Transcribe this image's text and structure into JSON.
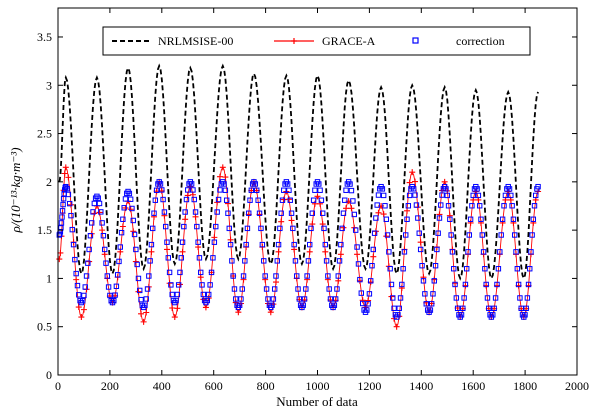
{
  "chart_data": {
    "type": "line",
    "xlabel": "Number of data",
    "ylabel": "ρ/(10⁻¹³·kg·m⁻³)",
    "xlim": [
      0,
      2000
    ],
    "ylim": [
      0,
      3.8
    ],
    "x_ticks": [
      0,
      200,
      400,
      600,
      800,
      1000,
      1200,
      1400,
      1600,
      1800,
      2000
    ],
    "x_tick_labels": [
      "0",
      "200",
      "400",
      "600",
      "800",
      "1000",
      "1200",
      "1400",
      "1600",
      "1800",
      "2000"
    ],
    "y_ticks": [
      0,
      0.5,
      1,
      1.5,
      2,
      2.5,
      3,
      3.5
    ],
    "y_tick_labels": [
      "0",
      "0.5",
      "1",
      "1.5",
      "2",
      "2.5",
      "3",
      "3.5"
    ],
    "grid": false,
    "legend_position": "top-center",
    "series": [
      {
        "name": "NRLMSISE-00",
        "style": "dashed",
        "color": "#000000",
        "peaks": [
          {
            "x": 30,
            "y": 3.08
          },
          {
            "x": 150,
            "y": 3.08
          },
          {
            "x": 270,
            "y": 3.18
          },
          {
            "x": 390,
            "y": 3.2
          },
          {
            "x": 510,
            "y": 3.18
          },
          {
            "x": 635,
            "y": 3.2
          },
          {
            "x": 755,
            "y": 3.12
          },
          {
            "x": 880,
            "y": 3.1
          },
          {
            "x": 1000,
            "y": 3.1
          },
          {
            "x": 1120,
            "y": 3.05
          },
          {
            "x": 1245,
            "y": 2.98
          },
          {
            "x": 1365,
            "y": 3.0
          },
          {
            "x": 1490,
            "y": 2.98
          },
          {
            "x": 1610,
            "y": 2.95
          },
          {
            "x": 1735,
            "y": 2.93
          },
          {
            "x": 1850,
            "y": 2.93
          }
        ],
        "troughs": [
          {
            "x": 5,
            "y": 2.0
          },
          {
            "x": 90,
            "y": 1.05
          },
          {
            "x": 210,
            "y": 1.05
          },
          {
            "x": 330,
            "y": 1.1
          },
          {
            "x": 450,
            "y": 1.15
          },
          {
            "x": 570,
            "y": 1.2
          },
          {
            "x": 695,
            "y": 1.2
          },
          {
            "x": 820,
            "y": 1.15
          },
          {
            "x": 940,
            "y": 1.15
          },
          {
            "x": 1060,
            "y": 1.1
          },
          {
            "x": 1185,
            "y": 1.1
          },
          {
            "x": 1305,
            "y": 1.05
          },
          {
            "x": 1430,
            "y": 1.05
          },
          {
            "x": 1550,
            "y": 1.0
          },
          {
            "x": 1670,
            "y": 1.0
          },
          {
            "x": 1795,
            "y": 1.0
          }
        ]
      },
      {
        "name": "GRACE-A",
        "style": "line-plus",
        "color": "#ff0000",
        "peaks": [
          {
            "x": 30,
            "y": 2.15
          },
          {
            "x": 150,
            "y": 1.75
          },
          {
            "x": 270,
            "y": 1.8
          },
          {
            "x": 390,
            "y": 2.0
          },
          {
            "x": 510,
            "y": 1.95
          },
          {
            "x": 635,
            "y": 2.15
          },
          {
            "x": 755,
            "y": 2.0
          },
          {
            "x": 880,
            "y": 1.9
          },
          {
            "x": 1000,
            "y": 1.85
          },
          {
            "x": 1120,
            "y": 1.8
          },
          {
            "x": 1245,
            "y": 1.75
          },
          {
            "x": 1365,
            "y": 2.1
          },
          {
            "x": 1490,
            "y": 2.0
          },
          {
            "x": 1610,
            "y": 1.9
          },
          {
            "x": 1735,
            "y": 1.9
          },
          {
            "x": 1850,
            "y": 1.9
          }
        ],
        "troughs": [
          {
            "x": 5,
            "y": 1.2
          },
          {
            "x": 90,
            "y": 0.6
          },
          {
            "x": 210,
            "y": 0.75
          },
          {
            "x": 330,
            "y": 0.55
          },
          {
            "x": 450,
            "y": 0.6
          },
          {
            "x": 570,
            "y": 0.7
          },
          {
            "x": 695,
            "y": 0.65
          },
          {
            "x": 820,
            "y": 0.65
          },
          {
            "x": 940,
            "y": 0.7
          },
          {
            "x": 1060,
            "y": 0.7
          },
          {
            "x": 1185,
            "y": 0.7
          },
          {
            "x": 1305,
            "y": 0.5
          },
          {
            "x": 1430,
            "y": 0.65
          },
          {
            "x": 1550,
            "y": 0.6
          },
          {
            "x": 1670,
            "y": 0.6
          },
          {
            "x": 1795,
            "y": 0.6
          }
        ]
      },
      {
        "name": "correction",
        "style": "square-markers",
        "color": "#0000ff",
        "peaks": [
          {
            "x": 30,
            "y": 1.95
          },
          {
            "x": 150,
            "y": 1.85
          },
          {
            "x": 270,
            "y": 1.9
          },
          {
            "x": 390,
            "y": 2.0
          },
          {
            "x": 510,
            "y": 2.0
          },
          {
            "x": 635,
            "y": 2.0
          },
          {
            "x": 755,
            "y": 2.0
          },
          {
            "x": 880,
            "y": 2.0
          },
          {
            "x": 1000,
            "y": 2.0
          },
          {
            "x": 1120,
            "y": 2.0
          },
          {
            "x": 1245,
            "y": 1.95
          },
          {
            "x": 1365,
            "y": 1.95
          },
          {
            "x": 1490,
            "y": 1.95
          },
          {
            "x": 1610,
            "y": 1.95
          },
          {
            "x": 1735,
            "y": 1.95
          },
          {
            "x": 1850,
            "y": 1.95
          }
        ],
        "troughs": [
          {
            "x": 5,
            "y": 1.45
          },
          {
            "x": 90,
            "y": 0.75
          },
          {
            "x": 210,
            "y": 0.75
          },
          {
            "x": 330,
            "y": 0.7
          },
          {
            "x": 450,
            "y": 0.75
          },
          {
            "x": 570,
            "y": 0.75
          },
          {
            "x": 695,
            "y": 0.7
          },
          {
            "x": 820,
            "y": 0.7
          },
          {
            "x": 940,
            "y": 0.7
          },
          {
            "x": 1060,
            "y": 0.7
          },
          {
            "x": 1185,
            "y": 0.65
          },
          {
            "x": 1305,
            "y": 0.6
          },
          {
            "x": 1430,
            "y": 0.65
          },
          {
            "x": 1550,
            "y": 0.6
          },
          {
            "x": 1670,
            "y": 0.6
          },
          {
            "x": 1795,
            "y": 0.6
          }
        ]
      }
    ]
  }
}
